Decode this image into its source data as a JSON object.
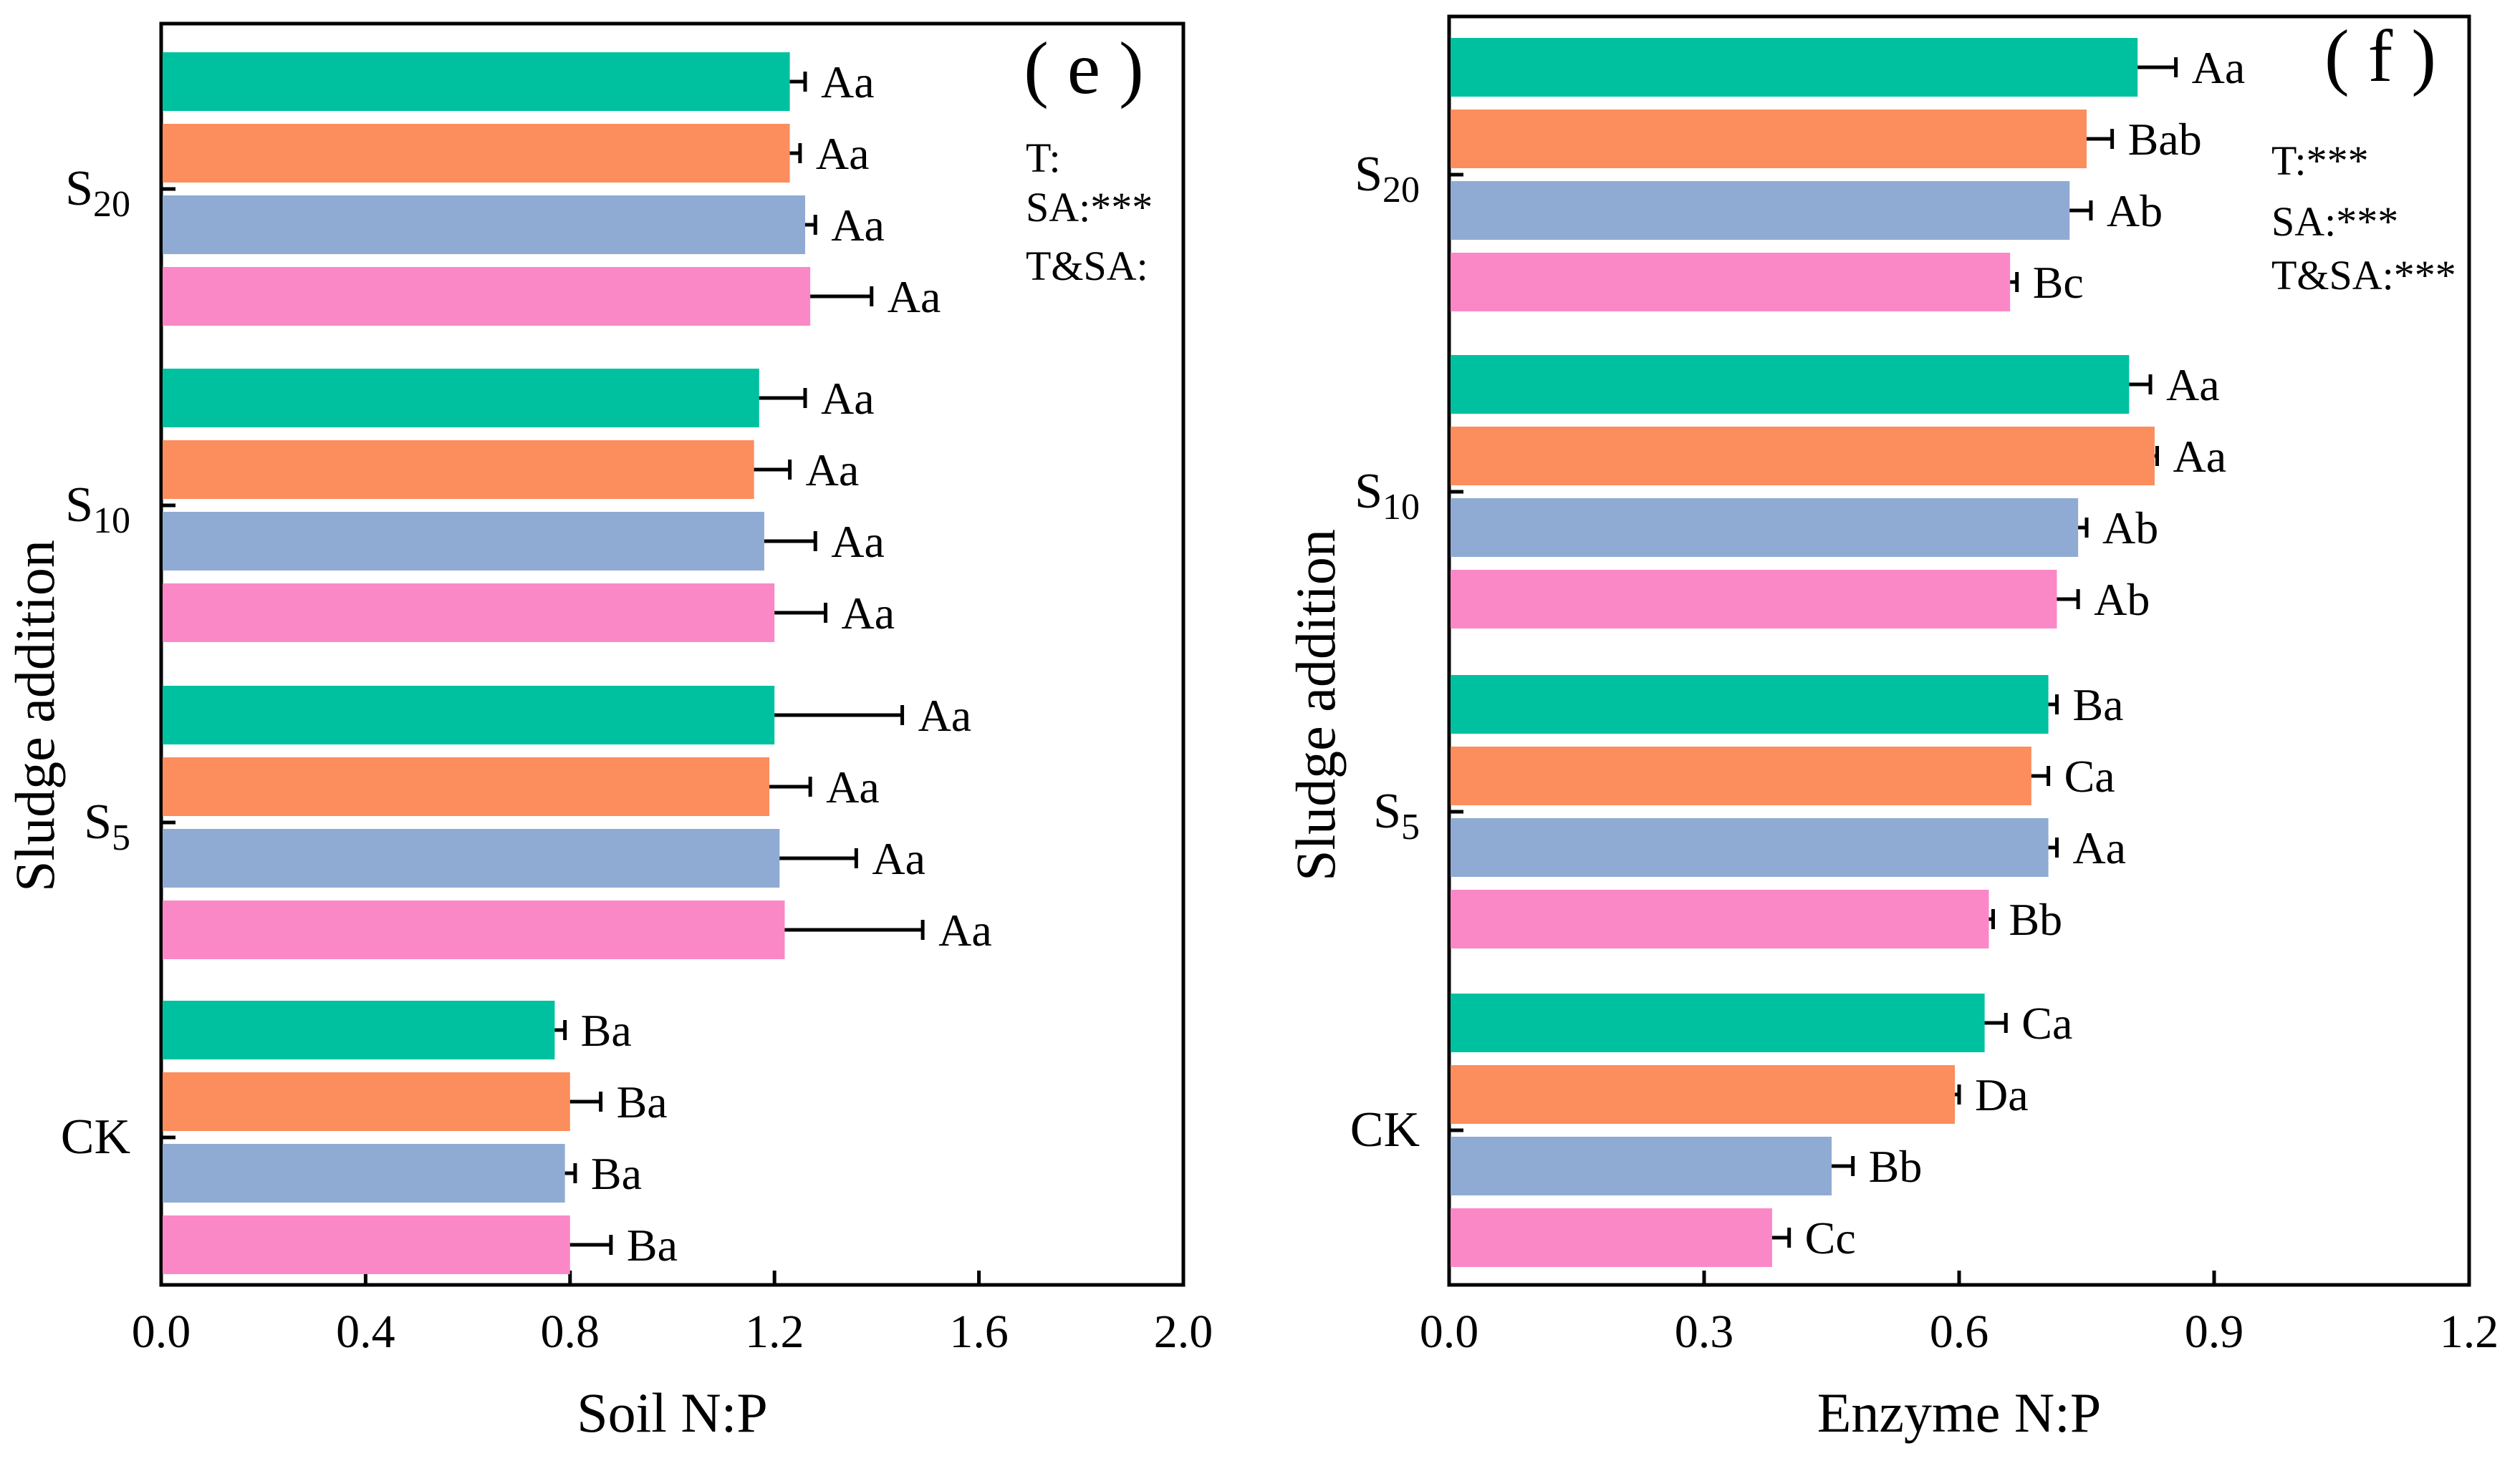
{
  "colors": {
    "series": [
      "#00c19f",
      "#fc8d5c",
      "#8fabd3",
      "#fb88c6"
    ],
    "axis": "#000000",
    "error": "#000000"
  },
  "chart_data": [
    {
      "type": "bar",
      "orientation": "horizontal",
      "panel_label": "( e )",
      "xlabel": "Soil N:P",
      "ylabel": "Sludge addition",
      "xlim": [
        0,
        2.0
      ],
      "xticks": [
        "0.0",
        "0.4",
        "0.8",
        "1.2",
        "1.6",
        "2.0"
      ],
      "groups": [
        {
          "label": "CK",
          "sub": "",
          "bars": [
            {
              "value": 0.77,
              "error": 0.02,
              "letter": "Ba"
            },
            {
              "value": 0.8,
              "error": 0.06,
              "letter": "Ba"
            },
            {
              "value": 0.79,
              "error": 0.02,
              "letter": "Ba"
            },
            {
              "value": 0.8,
              "error": 0.08,
              "letter": "Ba"
            }
          ]
        },
        {
          "label": "S",
          "sub": "5",
          "bars": [
            {
              "value": 1.2,
              "error": 0.25,
              "letter": "Aa"
            },
            {
              "value": 1.19,
              "error": 0.08,
              "letter": "Aa"
            },
            {
              "value": 1.21,
              "error": 0.15,
              "letter": "Aa"
            },
            {
              "value": 1.22,
              "error": 0.27,
              "letter": "Aa"
            }
          ]
        },
        {
          "label": "S",
          "sub": "10",
          "bars": [
            {
              "value": 1.17,
              "error": 0.09,
              "letter": "Aa"
            },
            {
              "value": 1.16,
              "error": 0.07,
              "letter": "Aa"
            },
            {
              "value": 1.18,
              "error": 0.1,
              "letter": "Aa"
            },
            {
              "value": 1.2,
              "error": 0.1,
              "letter": "Aa"
            }
          ]
        },
        {
          "label": "S",
          "sub": "20",
          "bars": [
            {
              "value": 1.23,
              "error": 0.03,
              "letter": "Aa"
            },
            {
              "value": 1.23,
              "error": 0.02,
              "letter": "Aa"
            },
            {
              "value": 1.26,
              "error": 0.02,
              "letter": "Aa"
            },
            {
              "value": 1.27,
              "error": 0.12,
              "letter": "Aa"
            }
          ]
        }
      ],
      "stats": [
        "T:",
        "SA:***",
        "T&SA:"
      ]
    },
    {
      "type": "bar",
      "orientation": "horizontal",
      "panel_label": "( f )",
      "xlabel": "Enzyme N:P",
      "ylabel": "Sludge addition",
      "xlim": [
        0,
        1.2
      ],
      "xticks": [
        "0.0",
        "0.3",
        "0.6",
        "0.9",
        "1.2"
      ],
      "groups": [
        {
          "label": "CK",
          "sub": "",
          "bars": [
            {
              "value": 0.63,
              "error": 0.025,
              "letter": "Ca"
            },
            {
              "value": 0.595,
              "error": 0.005,
              "letter": "Da"
            },
            {
              "value": 0.45,
              "error": 0.025,
              "letter": "Bb"
            },
            {
              "value": 0.38,
              "error": 0.02,
              "letter": "Cc"
            }
          ]
        },
        {
          "label": "S",
          "sub": "5",
          "bars": [
            {
              "value": 0.705,
              "error": 0.01,
              "letter": "Ba"
            },
            {
              "value": 0.685,
              "error": 0.02,
              "letter": "Ca"
            },
            {
              "value": 0.705,
              "error": 0.01,
              "letter": "Aa"
            },
            {
              "value": 0.635,
              "error": 0.005,
              "letter": "Bb"
            }
          ]
        },
        {
          "label": "S",
          "sub": "10",
          "bars": [
            {
              "value": 0.8,
              "error": 0.025,
              "letter": "Aa"
            },
            {
              "value": 0.83,
              "error": 0.003,
              "letter": "Aa"
            },
            {
              "value": 0.74,
              "error": 0.01,
              "letter": "Ab"
            },
            {
              "value": 0.715,
              "error": 0.025,
              "letter": "Ab"
            }
          ]
        },
        {
          "label": "S",
          "sub": "20",
          "bars": [
            {
              "value": 0.81,
              "error": 0.045,
              "letter": "Aa"
            },
            {
              "value": 0.75,
              "error": 0.03,
              "letter": "Bab"
            },
            {
              "value": 0.73,
              "error": 0.025,
              "letter": "Ab"
            },
            {
              "value": 0.66,
              "error": 0.008,
              "letter": "Bc"
            }
          ]
        }
      ],
      "stats": [
        "T:***",
        "SA:***",
        "T&SA:***"
      ]
    }
  ]
}
